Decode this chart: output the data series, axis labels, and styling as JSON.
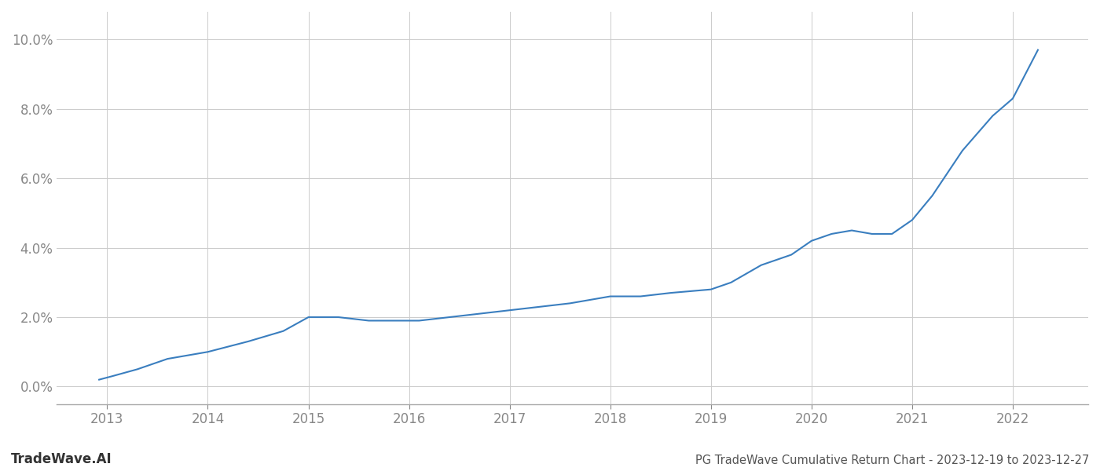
{
  "title": "PG TradeWave Cumulative Return Chart - 2023-12-19 to 2023-12-27",
  "watermark": "TradeWave.AI",
  "line_color": "#3a7ebf",
  "background_color": "#ffffff",
  "grid_color": "#cccccc",
  "x_years": [
    2013,
    2014,
    2015,
    2016,
    2017,
    2018,
    2019,
    2020,
    2021,
    2022
  ],
  "x_data": [
    2012.92,
    2013.05,
    2013.3,
    2013.6,
    2014.0,
    2014.4,
    2014.75,
    2015.0,
    2015.3,
    2015.6,
    2015.9,
    2016.1,
    2016.4,
    2016.7,
    2017.0,
    2017.3,
    2017.6,
    2018.0,
    2018.3,
    2018.6,
    2019.0,
    2019.2,
    2019.5,
    2019.8,
    2020.0,
    2020.2,
    2020.4,
    2020.6,
    2020.8,
    2021.0,
    2021.2,
    2021.5,
    2021.8,
    2022.0,
    2022.25
  ],
  "y_data": [
    0.002,
    0.003,
    0.005,
    0.008,
    0.01,
    0.013,
    0.016,
    0.02,
    0.02,
    0.019,
    0.019,
    0.019,
    0.02,
    0.021,
    0.022,
    0.023,
    0.024,
    0.026,
    0.026,
    0.027,
    0.028,
    0.03,
    0.035,
    0.038,
    0.042,
    0.044,
    0.045,
    0.044,
    0.044,
    0.048,
    0.055,
    0.068,
    0.078,
    0.083,
    0.097
  ],
  "ylim": [
    -0.005,
    0.108
  ],
  "xlim": [
    2012.5,
    2022.75
  ],
  "yticks": [
    0.0,
    0.02,
    0.04,
    0.06,
    0.08,
    0.1
  ],
  "ytick_labels": [
    "0.0%",
    "2.0%",
    "4.0%",
    "6.0%",
    "8.0%",
    "10.0%"
  ],
  "line_width": 1.5,
  "title_fontsize": 10.5,
  "tick_fontsize": 12,
  "watermark_fontsize": 12,
  "title_color": "#555555",
  "tick_color": "#888888",
  "watermark_color": "#333333",
  "axis_bottom_color": "#aaaaaa"
}
